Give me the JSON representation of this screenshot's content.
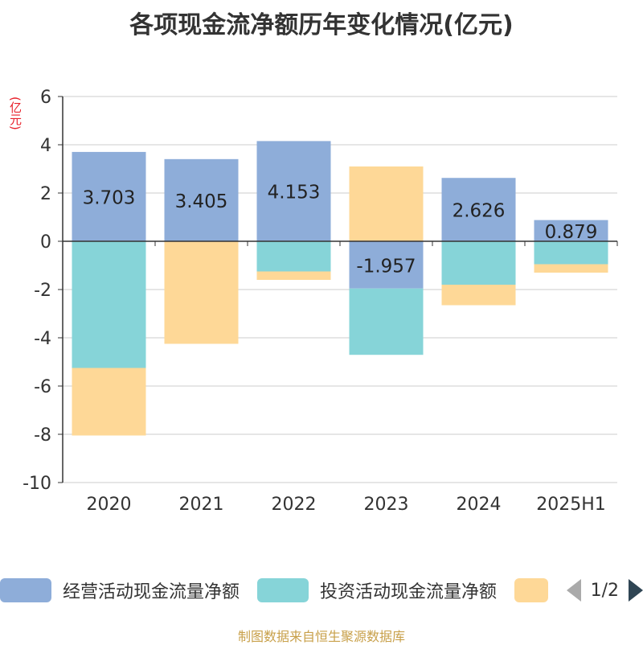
{
  "title": "各项现金流净额历年变化情况(亿元)",
  "unit_label": "(亿元)",
  "legend": {
    "items": [
      {
        "label": "经营活动现金流量净额",
        "color": "#8eadd9"
      },
      {
        "label": "投资活动现金流量净额",
        "color": "#86d4d8"
      },
      {
        "label": "",
        "color": "#fed897"
      }
    ],
    "page": "1/2"
  },
  "source": "制图数据来自恒生聚源数据库",
  "chart_data": {
    "type": "bar",
    "stacked": true,
    "categories": [
      "2020",
      "2021",
      "2022",
      "2023",
      "2024",
      "2025H1"
    ],
    "ylim": [
      -10,
      6
    ],
    "yticks": [
      6,
      4,
      2,
      0,
      -2,
      -4,
      -6,
      -8,
      -10
    ],
    "series": [
      {
        "name": "经营活动现金流量净额",
        "color": "#8eadd9",
        "values": [
          3.703,
          3.405,
          4.153,
          -1.957,
          2.626,
          0.879
        ],
        "labels": [
          "3.703",
          "3.405",
          "4.153",
          "-1.957",
          "2.626",
          "0.879"
        ]
      },
      {
        "name": "投资活动现金流量净额",
        "color": "#86d4d8",
        "values": [
          -5.25,
          0,
          -1.25,
          -2.75,
          -1.8,
          -0.95
        ]
      },
      {
        "color": "#fed897",
        "values": [
          -2.8,
          -4.25,
          -0.35,
          3.1,
          -0.85,
          -0.35
        ]
      }
    ]
  }
}
